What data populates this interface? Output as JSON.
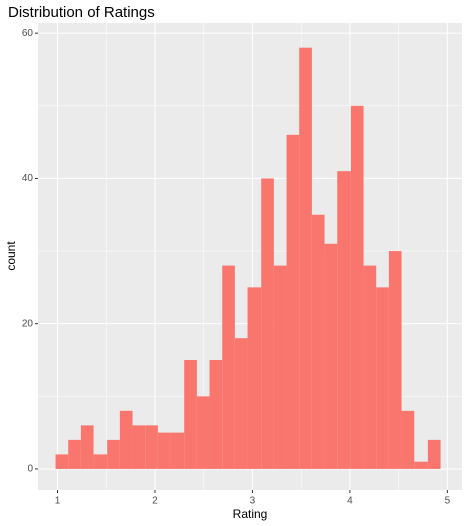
{
  "chart_data": {
    "type": "histogram",
    "title": "Distribution of Ratings",
    "x_label": "Rating",
    "y_label": "count",
    "bins": [
      0.98,
      1.11,
      1.24,
      1.37,
      1.51,
      1.64,
      1.77,
      1.9,
      2.03,
      2.16,
      2.3,
      2.43,
      2.56,
      2.69,
      2.82,
      2.95,
      3.09,
      3.22,
      3.35,
      3.48,
      3.61,
      3.74,
      3.87,
      4.01,
      4.14,
      4.27,
      4.4,
      4.53,
      4.66,
      4.8,
      4.93
    ],
    "values": [
      2,
      4,
      6,
      2,
      4,
      8,
      6,
      6,
      5,
      5,
      15,
      10,
      15,
      28,
      18,
      25,
      40,
      28,
      46,
      58,
      35,
      31,
      41,
      50,
      28,
      25,
      30,
      8,
      1,
      4
    ],
    "color": "#f8766d",
    "xlim": [
      0.8,
      5.15
    ],
    "ylim": [
      -2.9,
      61.4
    ],
    "xticks": [
      1,
      2,
      3,
      4,
      5
    ],
    "yticks": [
      0,
      20,
      40,
      60
    ],
    "x_minor_grid": [
      1.5,
      2.5,
      3.5,
      4.5
    ],
    "y_minor_grid": [
      10,
      30,
      50
    ],
    "grid": true,
    "panel_color": "#ebebeb"
  }
}
